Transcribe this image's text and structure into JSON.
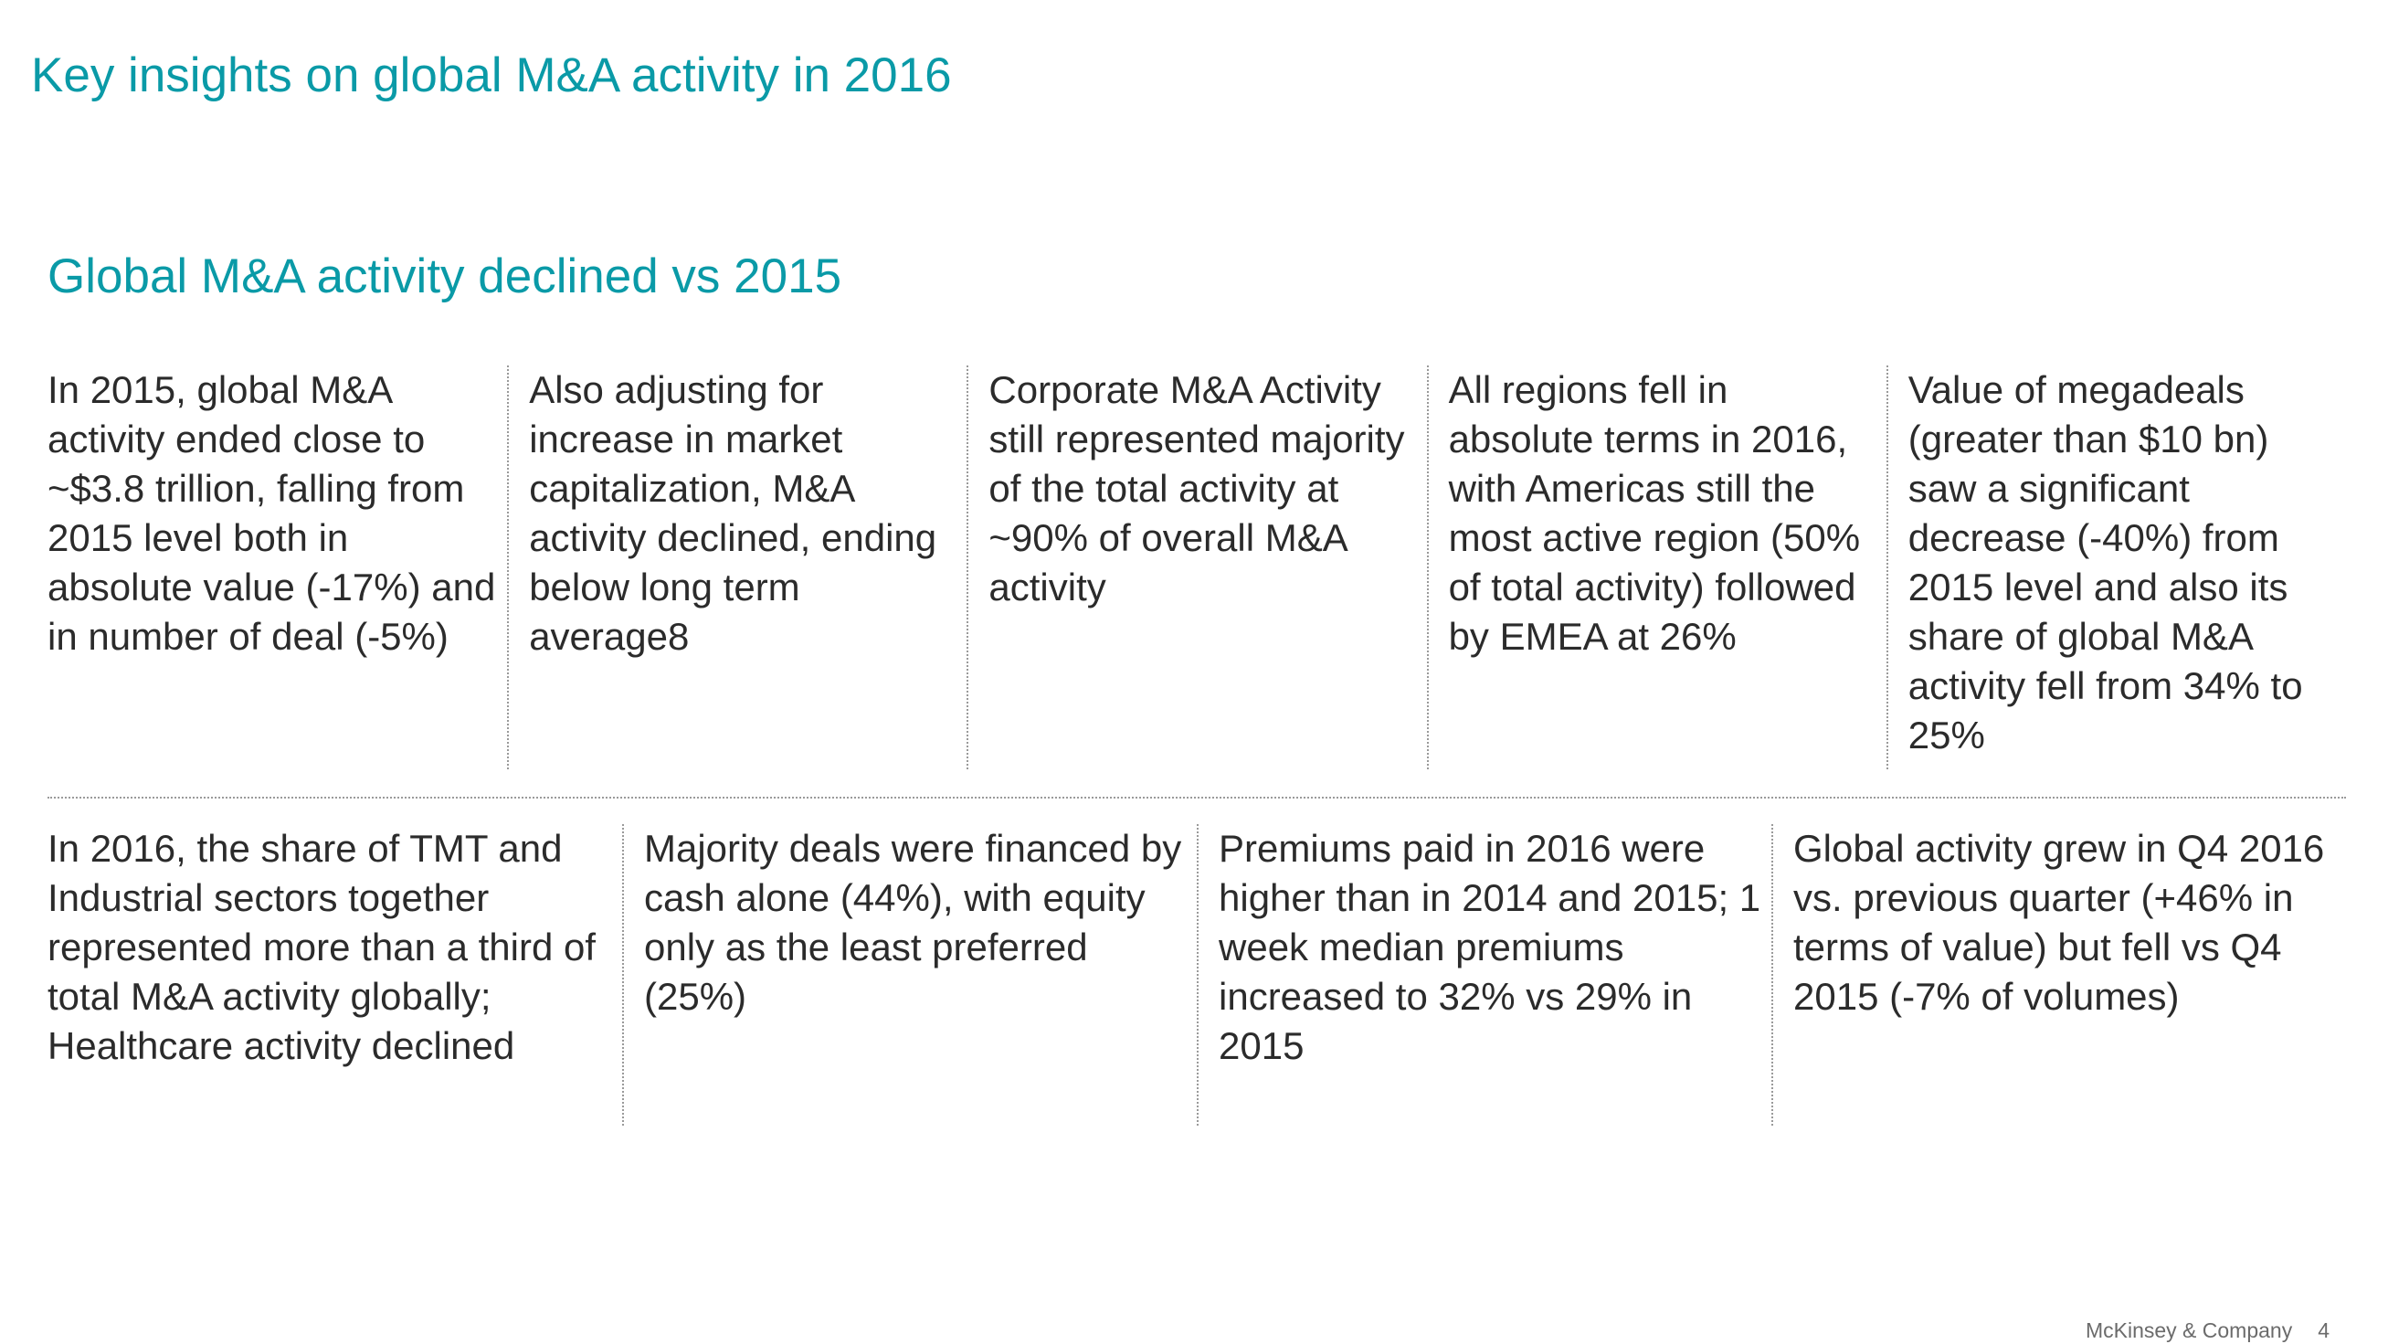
{
  "title": "Key insights on global M&A activity in 2016",
  "section_title": "Global M&A activity declined vs 2015",
  "row1": [
    "In 2015, global M&A activity ended close to ~$3.8 trillion, falling from 2015 level both in absolute value (-17%) and in number of deal (-5%)",
    "Also adjusting for increase in market capitalization, M&A activity declined, ending below long term average8",
    "Corporate M&A Activity still represented majority of the total activity at ~90% of overall M&A activity",
    "All regions fell in absolute terms in 2016, with Americas still the most active region (50% of total activity) followed by EMEA at 26%",
    "Value of megadeals (greater than $10 bn) saw a significant decrease (-40%) from 2015 level and also its share of global M&A activity fell from 34% to 25%"
  ],
  "row2": [
    "In 2016, the share of TMT and Industrial sectors together represented more than a third of total M&A activity globally; Healthcare activity declined",
    "Majority deals were financed by cash alone (44%), with equity only as the least preferred (25%)",
    "Premiums paid in 2016 were higher than in 2014 and 2015; 1 week median premiums increased to 32% vs 29% in 2015",
    "Global activity grew in Q4 2016 vs. previous quarter (+46% in terms of value) but fell vs Q4 2015 (-7% of volumes)"
  ],
  "footer": {
    "company": "McKinsey & Company",
    "page_number": "4"
  },
  "colors": {
    "accent": "#0a9aa7",
    "body_text": "#2b2b2b",
    "divider": "#9a9a9a"
  }
}
